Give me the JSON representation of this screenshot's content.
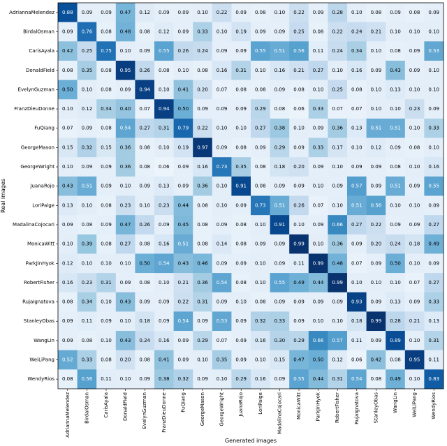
{
  "chart_data": {
    "type": "heatmap",
    "xlabel": "Generated images",
    "ylabel": "Real images",
    "x_labels": [
      "AdriannaMelendez",
      "BirdalOsman",
      "CarisAyala",
      "DonaldField",
      "EvelynGuzman",
      "FranzDieuDonne",
      "FuQiang",
      "GeorgeMason",
      "GeorgeWright",
      "JuanaRojo",
      "LoriPaige",
      "MadalinaCojocari",
      "MonicaWitt",
      "ParkJinHyok",
      "RobertFisher",
      "RujaIgnatova",
      "StanleyObas",
      "WangLin",
      "WeiLiPang",
      "WendyRios"
    ],
    "y_labels": [
      "AdriannaMelendez",
      "BirdalOsman",
      "CarisAyala",
      "DonaldField",
      "EvelynGuzman",
      "FranzDieuDonne",
      "FuQiang",
      "GeorgeMason",
      "GeorgeWright",
      "JuanaRojo",
      "LoriPaige",
      "MadalinaCojocari",
      "MonicaWitt",
      "ParkJinHyok",
      "RobertFisher",
      "RujaIgnatova",
      "StanleyObas",
      "WangLin",
      "WeiLiPang",
      "WendyRios"
    ],
    "value_range": [
      0,
      1
    ],
    "colormap": "Blues",
    "annotated": true,
    "values": [
      [
        0.88,
        0.09,
        0.09,
        0.47,
        0.12,
        0.09,
        0.09,
        0.1,
        0.22,
        0.09,
        0.08,
        0.1,
        0.22,
        0.09,
        0.28,
        0.1,
        0.08,
        0.09,
        0.08,
        0.09
      ],
      [
        0.09,
        0.76,
        0.08,
        0.48,
        0.08,
        0.12,
        0.09,
        0.33,
        0.1,
        0.19,
        0.09,
        0.09,
        0.25,
        0.08,
        0.22,
        0.24,
        0.21,
        0.1,
        0.1,
        0.1
      ],
      [
        0.42,
        0.25,
        0.75,
        0.1,
        0.09,
        0.55,
        0.26,
        0.24,
        0.09,
        0.09,
        0.55,
        0.51,
        0.56,
        0.11,
        0.24,
        0.34,
        0.1,
        0.08,
        0.09,
        0.53
      ],
      [
        0.08,
        0.35,
        0.08,
        0.95,
        0.26,
        0.08,
        0.1,
        0.08,
        0.16,
        0.31,
        0.1,
        0.16,
        0.21,
        0.27,
        0.1,
        0.16,
        0.09,
        0.43,
        0.09,
        0.1
      ],
      [
        0.5,
        0.1,
        0.08,
        0.09,
        0.94,
        0.1,
        0.41,
        0.2,
        0.07,
        0.08,
        0.08,
        0.09,
        0.08,
        0.1,
        0.25,
        0.08,
        0.1,
        0.13,
        0.1,
        0.1
      ],
      [
        0.1,
        0.12,
        0.34,
        0.4,
        0.07,
        0.94,
        0.5,
        0.09,
        0.09,
        0.09,
        0.29,
        0.08,
        0.06,
        0.33,
        0.07,
        0.07,
        0.1,
        0.1,
        0.23,
        0.09
      ],
      [
        0.07,
        0.09,
        0.08,
        0.54,
        0.27,
        0.31,
        0.79,
        0.22,
        0.1,
        0.1,
        0.27,
        0.38,
        0.1,
        0.09,
        0.36,
        0.13,
        0.51,
        0.51,
        0.1,
        0.33
      ],
      [
        0.15,
        0.32,
        0.15,
        0.36,
        0.08,
        0.1,
        0.19,
        0.97,
        0.09,
        0.08,
        0.09,
        0.29,
        0.09,
        0.33,
        0.17,
        0.1,
        0.12,
        0.09,
        0.08,
        0.1
      ],
      [
        0.1,
        0.09,
        0.09,
        0.36,
        0.08,
        0.06,
        0.09,
        0.16,
        0.73,
        0.35,
        0.08,
        0.18,
        0.2,
        0.09,
        0.1,
        0.09,
        0.09,
        0.08,
        0.1,
        0.16
      ],
      [
        0.43,
        0.51,
        0.09,
        0.1,
        0.09,
        0.13,
        0.09,
        0.36,
        0.1,
        0.91,
        0.08,
        0.09,
        0.09,
        0.1,
        0.09,
        0.57,
        0.09,
        0.51,
        0.09,
        0.55
      ],
      [
        0.13,
        0.1,
        0.08,
        0.23,
        0.1,
        0.23,
        0.44,
        0.08,
        0.1,
        0.09,
        0.73,
        0.51,
        0.26,
        0.07,
        0.1,
        0.51,
        0.56,
        0.1,
        0.1,
        0.09
      ],
      [
        0.09,
        0.08,
        0.09,
        0.47,
        0.26,
        0.09,
        0.45,
        0.08,
        0.09,
        0.08,
        0.1,
        0.91,
        0.1,
        0.09,
        0.66,
        0.27,
        0.22,
        0.09,
        0.09,
        0.27
      ],
      [
        0.1,
        0.39,
        0.08,
        0.27,
        0.08,
        0.16,
        0.51,
        0.08,
        0.14,
        0.08,
        0.09,
        0.09,
        0.99,
        0.1,
        0.36,
        0.09,
        0.2,
        0.24,
        0.18,
        0.49
      ],
      [
        0.12,
        0.1,
        0.1,
        0.1,
        0.5,
        0.54,
        0.43,
        0.46,
        0.09,
        0.09,
        0.1,
        0.09,
        0.11,
        0.99,
        0.48,
        0.07,
        0.09,
        0.5,
        0.1,
        0.09
      ],
      [
        0.16,
        0.23,
        0.31,
        0.09,
        0.08,
        0.1,
        0.21,
        0.36,
        0.54,
        0.08,
        0.1,
        0.55,
        0.49,
        0.44,
        0.99,
        0.1,
        0.1,
        0.1,
        0.07,
        0.27
      ],
      [
        0.08,
        0.34,
        0.1,
        0.43,
        0.09,
        0.09,
        0.22,
        0.31,
        0.09,
        0.1,
        0.08,
        0.09,
        0.09,
        0.09,
        0.09,
        0.93,
        0.09,
        0.13,
        0.09,
        0.33
      ],
      [
        0.09,
        0.11,
        0.09,
        0.1,
        0.18,
        0.09,
        0.54,
        0.09,
        0.53,
        0.09,
        0.32,
        0.33,
        0.09,
        0.1,
        0.1,
        0.18,
        0.99,
        0.28,
        0.21,
        0.13
      ],
      [
        0.09,
        0.08,
        0.1,
        0.43,
        0.24,
        0.16,
        0.09,
        0.29,
        0.07,
        0.09,
        0.16,
        0.3,
        0.29,
        0.66,
        0.57,
        0.11,
        0.09,
        0.89,
        0.1,
        0.31
      ],
      [
        0.52,
        0.33,
        0.08,
        0.2,
        0.08,
        0.41,
        0.09,
        0.1,
        0.35,
        0.09,
        0.1,
        0.15,
        0.47,
        0.5,
        0.12,
        0.06,
        0.42,
        0.08,
        0.95,
        0.11
      ],
      [
        0.08,
        0.56,
        0.11,
        0.1,
        0.09,
        0.38,
        0.32,
        0.09,
        0.1,
        0.29,
        0.16,
        0.09,
        0.55,
        0.44,
        0.31,
        0.54,
        0.08,
        0.49,
        0.1,
        0.83
      ]
    ]
  }
}
